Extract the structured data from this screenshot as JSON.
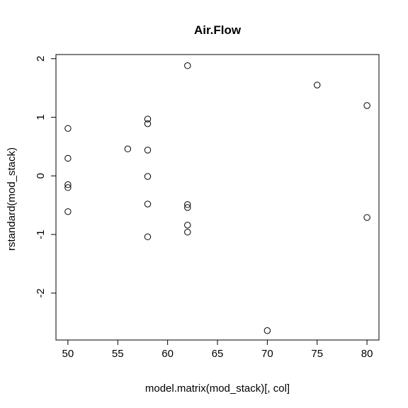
{
  "chart_data": {
    "type": "scatter",
    "title": "Air.Flow",
    "xlabel": "model.matrix(mod_stack)[, col]",
    "ylabel": "rstandard(mod_stack)",
    "xlim": [
      48.8,
      81.2
    ],
    "ylim": [
      -2.8,
      2.07
    ],
    "x_ticks": [
      50,
      55,
      60,
      65,
      70,
      75,
      80
    ],
    "x_tick_labels": [
      "50",
      "55",
      "60",
      "65",
      "70",
      "75",
      "80"
    ],
    "y_ticks": [
      -2,
      -1,
      0,
      1,
      2
    ],
    "y_tick_labels": [
      "-2",
      "-1",
      "0",
      "1",
      "2"
    ],
    "grid": false,
    "marker": "open-circle",
    "colors": {
      "points": "#000000",
      "axes": "#000000",
      "background": "#ffffff"
    },
    "points": [
      {
        "x": 50,
        "y": 0.81
      },
      {
        "x": 50,
        "y": 0.3
      },
      {
        "x": 50,
        "y": -0.15
      },
      {
        "x": 50,
        "y": -0.2
      },
      {
        "x": 50,
        "y": -0.61
      },
      {
        "x": 56,
        "y": 0.46
      },
      {
        "x": 58,
        "y": 0.97
      },
      {
        "x": 58,
        "y": 0.89
      },
      {
        "x": 58,
        "y": 0.44
      },
      {
        "x": 58,
        "y": -0.01
      },
      {
        "x": 58,
        "y": -0.48
      },
      {
        "x": 58,
        "y": -1.04
      },
      {
        "x": 62,
        "y": 1.88
      },
      {
        "x": 62,
        "y": -0.49
      },
      {
        "x": 62,
        "y": -0.54
      },
      {
        "x": 62,
        "y": -0.84
      },
      {
        "x": 62,
        "y": -0.96
      },
      {
        "x": 70,
        "y": -2.64
      },
      {
        "x": 75,
        "y": 1.55
      },
      {
        "x": 80,
        "y": 1.2
      },
      {
        "x": 80,
        "y": -0.71
      }
    ]
  }
}
